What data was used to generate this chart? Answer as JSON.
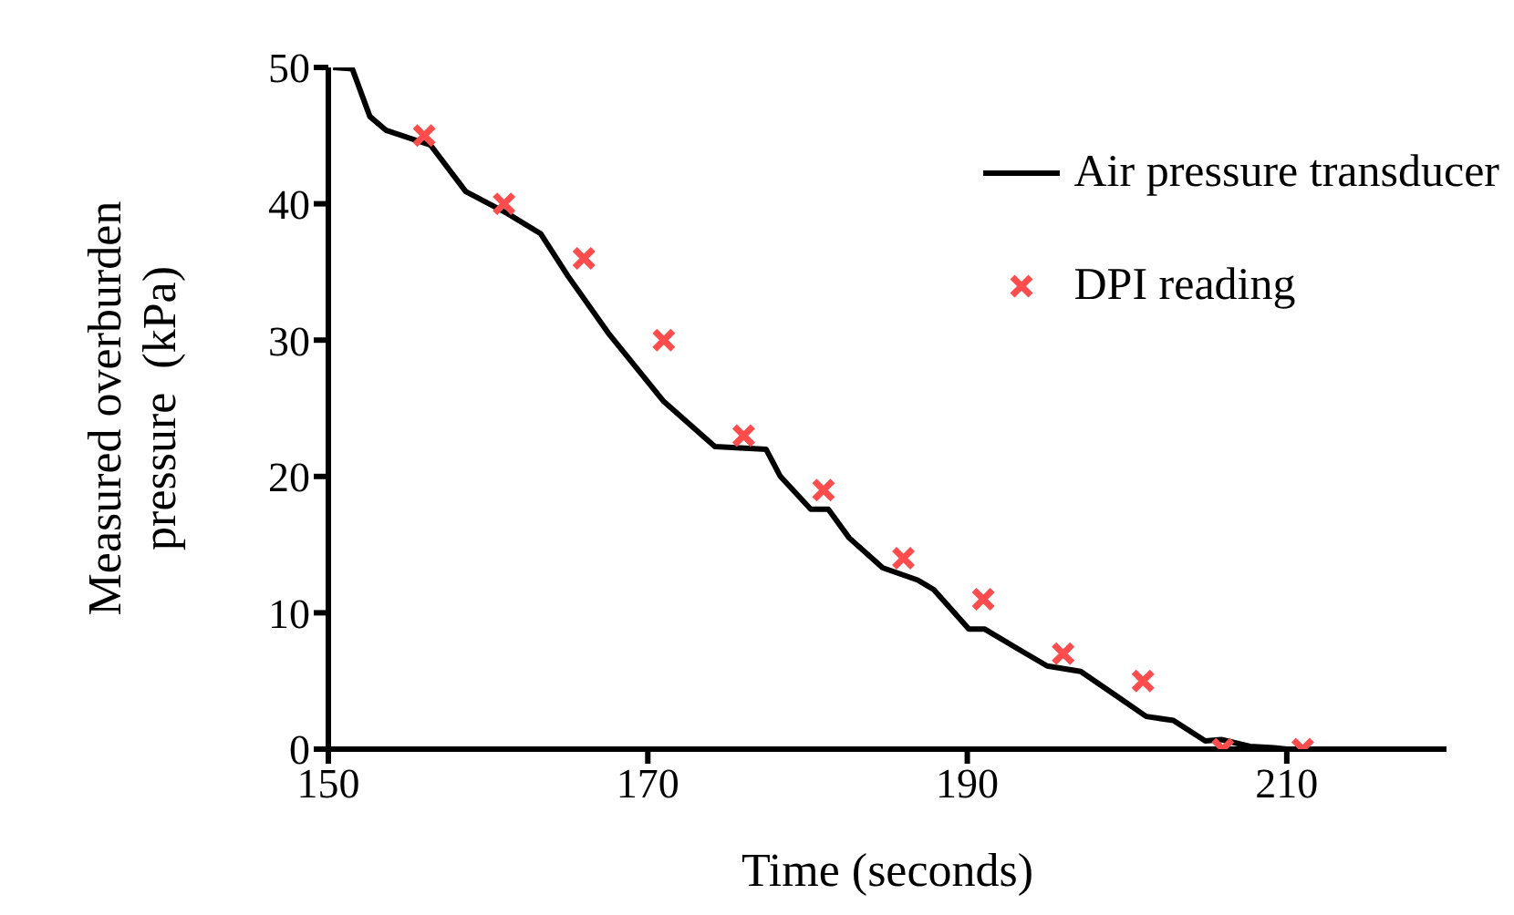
{
  "chart_data": {
    "type": "line",
    "xlabel": "Time (seconds)",
    "ylabel": "Measured overburden\npressure  (kPa)",
    "xlim": [
      150,
      220
    ],
    "xticks": [
      150,
      170,
      190,
      210
    ],
    "ylim": [
      0,
      50
    ],
    "yticks": [
      0,
      10,
      20,
      30,
      40,
      50
    ],
    "grid": false,
    "legend": "top right",
    "series": [
      {
        "name": "Air pressure transducer",
        "type": "line",
        "color": "#000000",
        "marker": "none",
        "line_style": "solid",
        "x": [
          150.3,
          151.5,
          152.6,
          153.6,
          156.4,
          158.6,
          161.2,
          163.3,
          165.0,
          167.6,
          171.0,
          174.2,
          177.4,
          178.3,
          180.2,
          181.3,
          182.6,
          184.7,
          186.9,
          187.9,
          190.1,
          191.1,
          193.1,
          195.0,
          197.1,
          199.1,
          201.2,
          202.9,
          204.9,
          205.9,
          207.7,
          209.2,
          210.0
        ],
        "values": [
          50.0,
          49.9,
          46.4,
          45.4,
          44.3,
          40.9,
          39.3,
          37.8,
          34.7,
          30.4,
          25.5,
          22.2,
          22.0,
          20.0,
          17.6,
          17.6,
          15.5,
          13.3,
          12.4,
          11.7,
          8.8,
          8.8,
          7.4,
          6.1,
          5.7,
          4.1,
          2.4,
          2.1,
          0.6,
          0.7,
          0.2,
          0.1,
          0
        ]
      },
      {
        "name": "DPI reading",
        "type": "scatter",
        "color": "#ff4d4d",
        "marker": "cross",
        "x": [
          156,
          161,
          166,
          171,
          176,
          181,
          186,
          191,
          196,
          201,
          206,
          211
        ],
        "values": [
          45,
          40,
          36,
          30,
          23,
          19,
          14,
          11,
          7,
          5,
          0,
          0
        ]
      }
    ]
  }
}
